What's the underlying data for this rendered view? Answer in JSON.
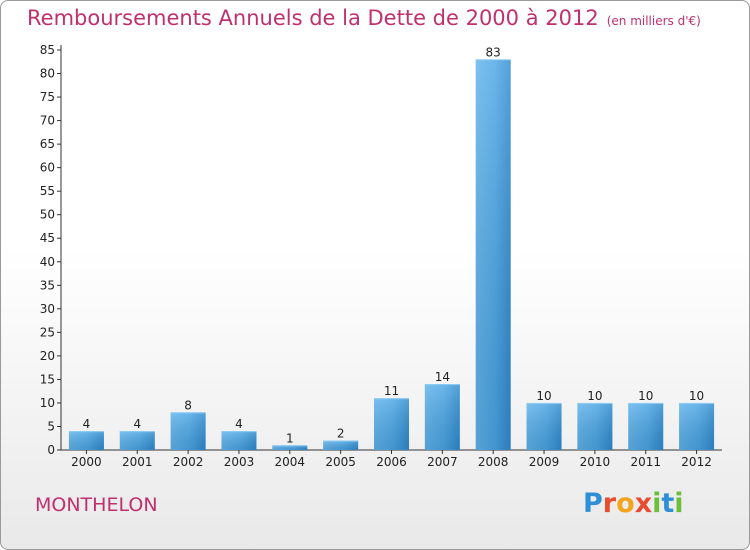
{
  "title": "Remboursements Annuels de la Dette de 2000 à 2012",
  "unit": "(en milliers d'€)",
  "commune": "MONTHELON",
  "logo": {
    "text": "Proxiti",
    "colors": [
      "#2f8fd6",
      "#e94b2e",
      "#f4a41c",
      "#e94b2e",
      "#6cbf3a",
      "#2f8fd6",
      "#6cbf3a"
    ]
  },
  "colors": {
    "title": "#c0306f",
    "bar": "#3d9de0",
    "bar_light": "#62b5ec"
  },
  "chart_data": {
    "type": "bar",
    "categories": [
      "2000",
      "2001",
      "2002",
      "2003",
      "2004",
      "2005",
      "2006",
      "2007",
      "2008",
      "2009",
      "2010",
      "2011",
      "2012"
    ],
    "values": [
      4,
      4,
      8,
      4,
      1,
      2,
      11,
      14,
      83,
      10,
      10,
      10,
      10
    ],
    "data_labels": [
      "4",
      "4",
      "8",
      "4",
      "1",
      "2",
      "11",
      "14",
      "83",
      "10",
      "10",
      "10",
      "10"
    ],
    "yticks": [
      0,
      5,
      10,
      15,
      20,
      25,
      30,
      35,
      40,
      45,
      50,
      55,
      60,
      65,
      70,
      75,
      80,
      85
    ],
    "ylim": [
      0,
      85
    ],
    "grid": false,
    "legend": "none"
  }
}
